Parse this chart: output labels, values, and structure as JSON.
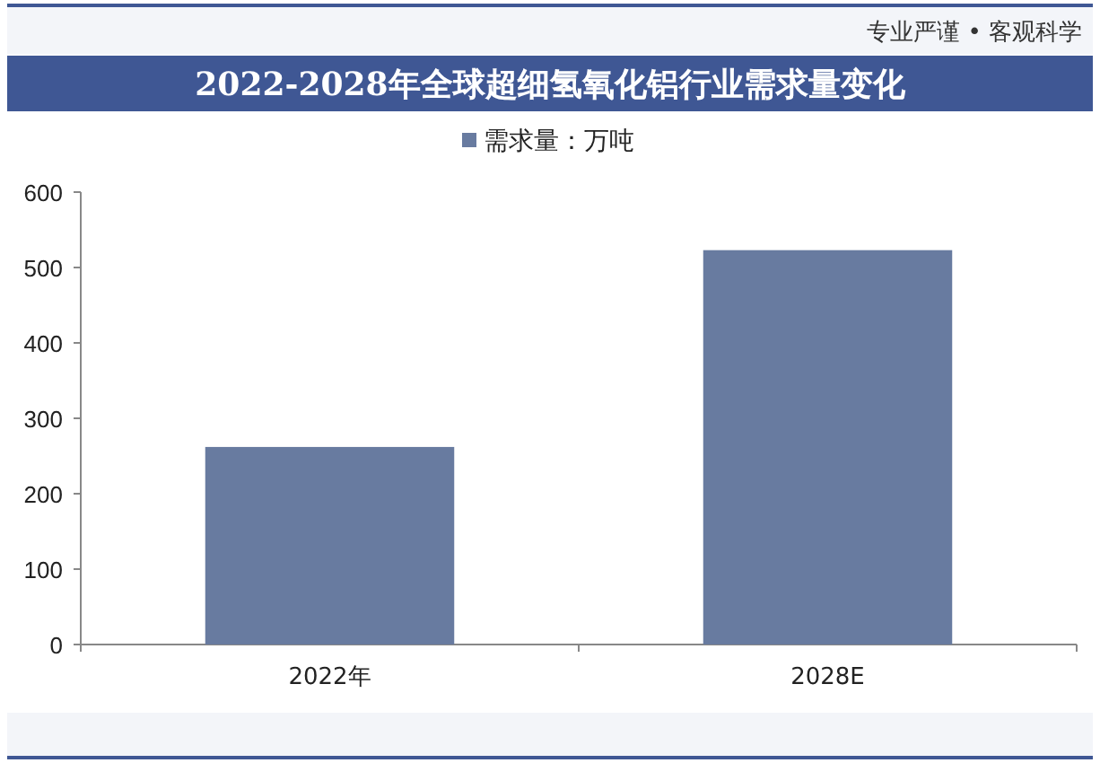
{
  "chart_data": {
    "type": "bar",
    "title": "2022-2028年全球超细氢氧化铝行业需求量变化",
    "categories": [
      "2022年",
      "2028E"
    ],
    "series": [
      {
        "name": "需求量：万吨",
        "color": "#687ba0",
        "values": [
          262,
          523
        ]
      }
    ],
    "ylim": [
      0,
      600
    ],
    "yticks": [
      0,
      100,
      200,
      300,
      400,
      500,
      600
    ],
    "grid": false,
    "legend": "top",
    "annotations": [
      "专业严谨 • 客观科学"
    ]
  }
}
